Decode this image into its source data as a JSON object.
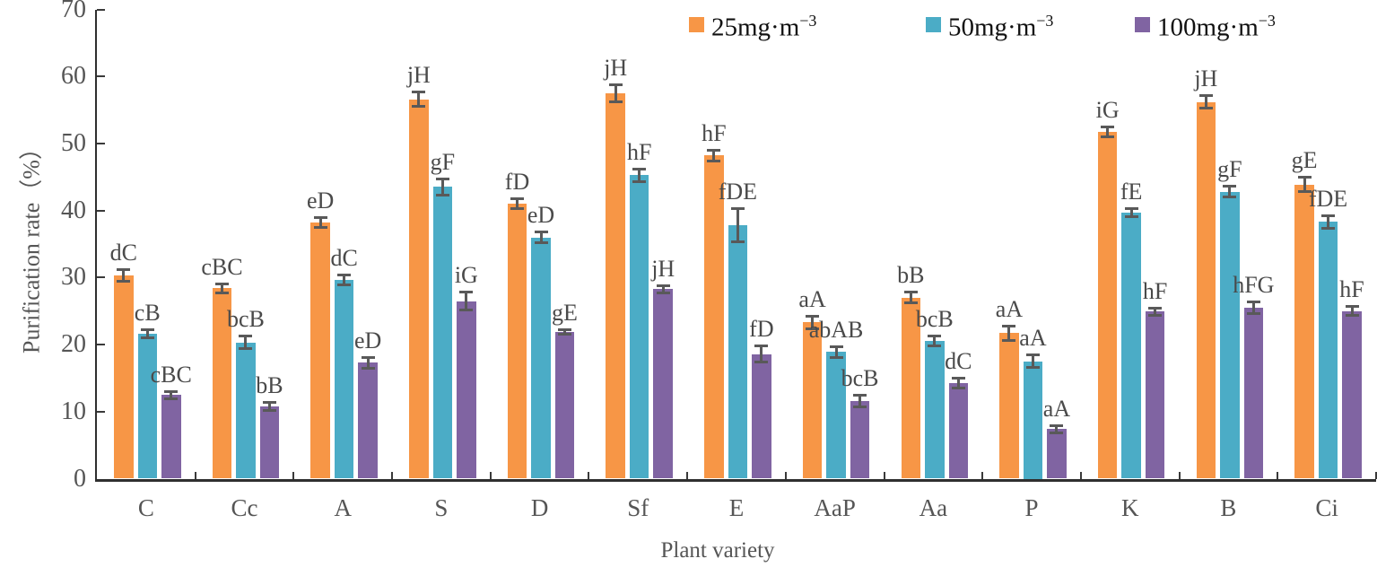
{
  "chart_data": {
    "type": "bar",
    "title": "",
    "xlabel": "Plant variety",
    "ylabel": "Purification rate（%）",
    "ylim": [
      0,
      70
    ],
    "yticks": [
      0,
      10,
      20,
      30,
      40,
      50,
      60,
      70
    ],
    "grid": false,
    "legend_position": "top",
    "categories": [
      "C",
      "Cc",
      "A",
      "S",
      "D",
      "Sf",
      "E",
      "AaP",
      "Aa",
      "P",
      "K",
      "B",
      "Ci"
    ],
    "series": [
      {
        "name": "25mg·m⁻³",
        "label_main": "25mg·m",
        "label_sup": "−3",
        "color": "#F79646",
        "values": [
          30.3,
          28.4,
          38.2,
          56.6,
          41.0,
          57.5,
          48.2,
          23.3,
          27.0,
          21.7,
          51.7,
          56.2,
          43.9
        ],
        "errors": [
          0.9,
          0.7,
          0.8,
          1.1,
          0.8,
          1.3,
          0.9,
          1.0,
          0.9,
          1.1,
          0.8,
          1.0,
          1.1
        ],
        "sig_labels": [
          "dC",
          "cBC",
          "eD",
          "jH",
          "fD",
          "jH",
          "hF",
          "aA",
          "bB",
          "aA",
          "iG",
          "jH",
          "gE"
        ]
      },
      {
        "name": "50mg·m⁻³",
        "label_main": "50mg·m",
        "label_sup": "−3",
        "color": "#4BACC6",
        "values": [
          21.6,
          20.3,
          29.7,
          43.5,
          36.0,
          45.3,
          37.8,
          18.9,
          20.6,
          17.5,
          39.7,
          42.8,
          38.3
        ],
        "errors": [
          0.7,
          1.0,
          0.8,
          1.3,
          0.9,
          1.0,
          2.5,
          0.9,
          0.8,
          1.0,
          0.7,
          0.9,
          1.0
        ],
        "sig_labels": [
          "cB",
          "bcB",
          "dC",
          "gF",
          "eD",
          "hF",
          "fDE",
          "abAB",
          "bcB",
          "aA",
          "fE",
          "gF",
          "fDE"
        ]
      },
      {
        "name": "100mg·m⁻³",
        "label_main": "100mg·m",
        "label_sup": "−3",
        "color": "#8064A2",
        "values": [
          12.5,
          10.8,
          17.3,
          26.5,
          21.9,
          28.3,
          18.6,
          11.6,
          14.2,
          7.4,
          24.9,
          25.5,
          25.0
        ],
        "errors": [
          0.6,
          0.7,
          0.9,
          1.4,
          0.4,
          0.6,
          1.3,
          0.9,
          0.8,
          0.6,
          0.6,
          1.0,
          0.7
        ],
        "sig_labels": [
          "cBC",
          "bB",
          "eD",
          "iG",
          "gE",
          "jH",
          "fD",
          "bcB",
          "dC",
          "aA",
          "hF",
          "hFG",
          "hF"
        ]
      }
    ],
    "colors": {
      "axis": "#2f2f2f",
      "tick_text": "#555555",
      "sig_label_text": "#4a4a4a",
      "error_bar": "#595959"
    }
  }
}
